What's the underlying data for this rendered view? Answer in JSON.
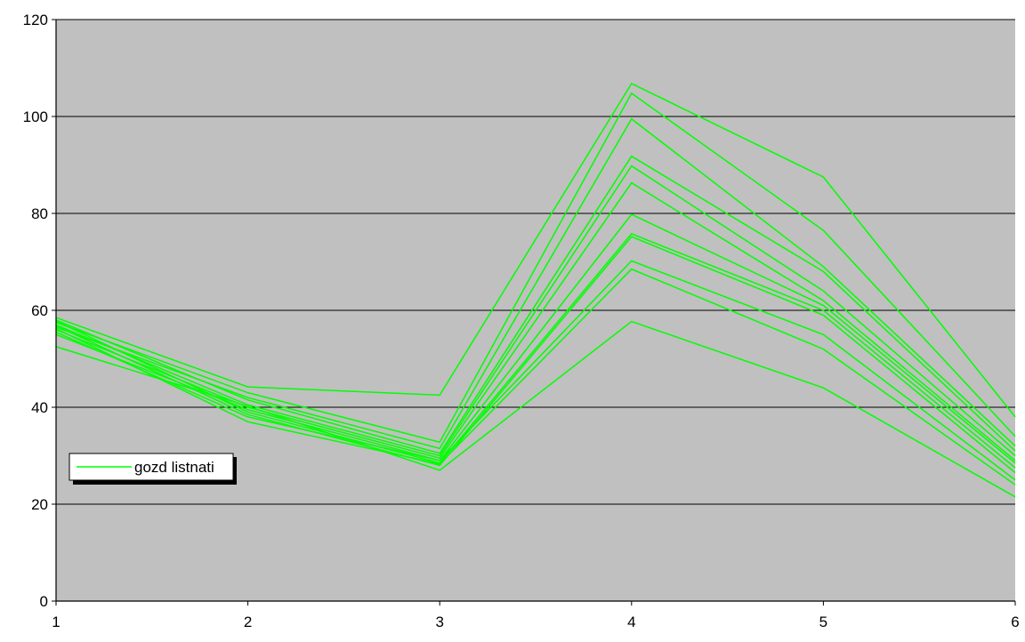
{
  "chart_data": {
    "type": "line",
    "title": "",
    "xlabel": "",
    "ylabel": "",
    "x": [
      1,
      2,
      3,
      4,
      5,
      6
    ],
    "x_tick_labels": [
      "1",
      "2",
      "3",
      "4",
      "5",
      "6"
    ],
    "y_tick_labels": [
      "0",
      "20",
      "40",
      "60",
      "80",
      "100",
      "120"
    ],
    "y_ticks": [
      0,
      20,
      40,
      60,
      80,
      100,
      120
    ],
    "ylim": [
      0,
      120
    ],
    "xlim": [
      1,
      6
    ],
    "grid": "horizontal",
    "plot_background": "#c0c0c0",
    "series_color": "#00ff00",
    "legend": {
      "placement": "left-middle",
      "entries": [
        {
          "label": "gozd listnati",
          "color": "#00ff00"
        }
      ]
    },
    "series": [
      {
        "values": [
          58.5,
          44.2,
          42.5,
          106.8,
          87.5,
          38.0
        ]
      },
      {
        "values": [
          57.5,
          43.0,
          32.8,
          104.8,
          76.5,
          34.0
        ]
      },
      {
        "values": [
          56.5,
          42.0,
          31.5,
          99.5,
          69.0,
          32.0
        ]
      },
      {
        "values": [
          58.0,
          41.5,
          30.5,
          91.8,
          68.0,
          31.0
        ]
      },
      {
        "values": [
          57.0,
          40.5,
          30.0,
          89.8,
          64.0,
          30.0
        ]
      },
      {
        "values": [
          56.0,
          40.0,
          29.5,
          86.3,
          62.0,
          29.0
        ]
      },
      {
        "values": [
          55.0,
          39.5,
          29.0,
          79.8,
          61.0,
          28.5
        ]
      },
      {
        "values": [
          57.8,
          39.0,
          28.5,
          75.8,
          60.0,
          27.5
        ]
      },
      {
        "values": [
          56.8,
          38.5,
          28.0,
          75.2,
          59.0,
          26.5
        ]
      },
      {
        "values": [
          55.5,
          38.0,
          29.0,
          70.2,
          55.0,
          25.0
        ]
      },
      {
        "values": [
          56.2,
          37.0,
          28.3,
          68.5,
          52.0,
          24.0
        ]
      },
      {
        "values": [
          52.5,
          40.2,
          27.0,
          57.7,
          44.0,
          21.5
        ]
      }
    ]
  }
}
